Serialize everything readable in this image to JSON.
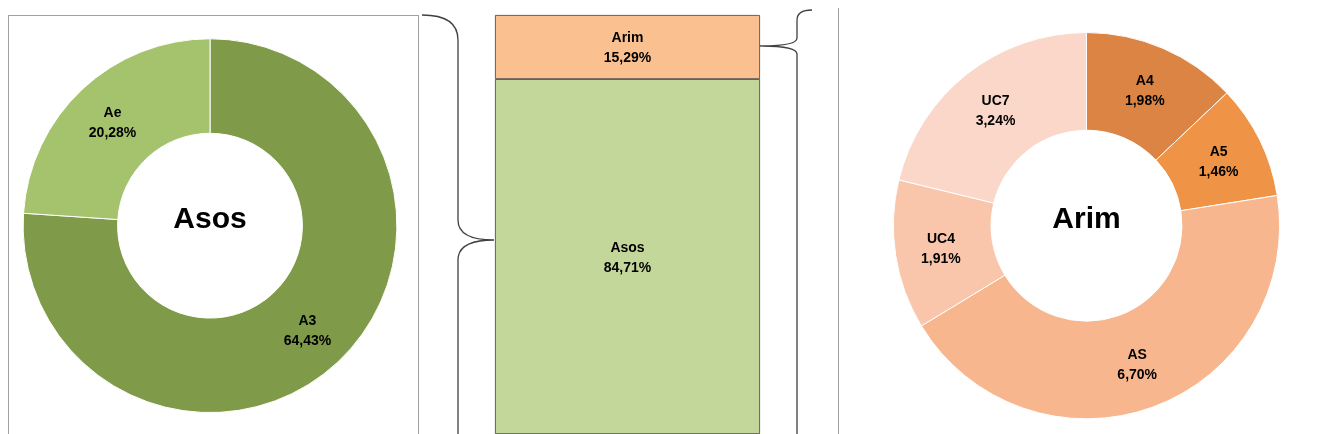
{
  "chart_data": [
    {
      "type": "donut",
      "title": "Asos",
      "categories": [
        "A3",
        "Ae"
      ],
      "values": [
        64.43,
        20.28
      ],
      "value_labels": [
        "64,43%",
        "20,28%"
      ],
      "colors": [
        "#7f9a48",
        "#a5c26d"
      ]
    },
    {
      "type": "bar",
      "stacked": true,
      "categories": [
        null
      ],
      "series": [
        {
          "name": "Asos",
          "color": "#c4d79b",
          "values": [
            84.71
          ],
          "value_labels": [
            "84,71%"
          ]
        },
        {
          "name": "Arim",
          "color": "#fac090",
          "values": [
            15.29
          ],
          "value_labels": [
            "15,29%"
          ]
        }
      ]
    },
    {
      "type": "donut",
      "title": "Arim",
      "categories": [
        "A4",
        "A5",
        "AS",
        "UC4",
        "UC7"
      ],
      "values": [
        1.98,
        1.46,
        6.7,
        1.91,
        3.24
      ],
      "value_labels": [
        "1,98%",
        "1,46%",
        "6,70%",
        "1,91%",
        "3,24%"
      ],
      "colors": [
        "#dc8444",
        "#ef9446",
        "#f8b68e",
        "#f9c6ab",
        "#fad7c8"
      ]
    }
  ]
}
